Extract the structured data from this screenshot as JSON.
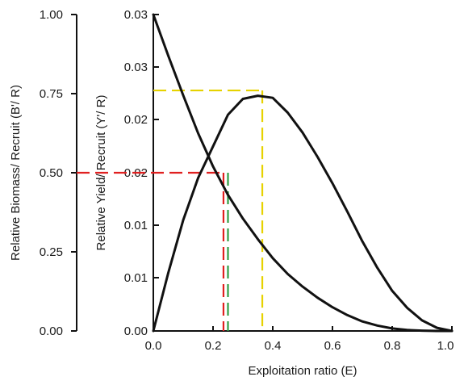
{
  "chart_data": {
    "type": "line",
    "xlabel": "Exploitation ratio (E)",
    "ylabel_left": "Relative Biomass/ Recruit (B'/ R)",
    "ylabel_right": "Relative Yield/ Recruit (Y'/ R)",
    "x_range": [
      0,
      1
    ],
    "x_ticks": [
      "0.0",
      "0.2",
      "0.4",
      "0.6",
      "0.8",
      "1.0"
    ],
    "left_axis": {
      "range": [
        0,
        1
      ],
      "ticks": [
        "0.00",
        "0.25",
        "0.50",
        "0.75",
        "1.00"
      ],
      "highlight_tick": "0.50",
      "highlight_color": "#e02020"
    },
    "right_axis": {
      "range": [
        0,
        0.03
      ],
      "ticks": [
        "0.00",
        "0.01",
        "0.02",
        "0.03"
      ]
    },
    "series": [
      {
        "axis": "left",
        "color": "#111111",
        "x": [
          0.0,
          0.05,
          0.1,
          0.15,
          0.2,
          0.25,
          0.3,
          0.35,
          0.4,
          0.45,
          0.5,
          0.55,
          0.6,
          0.65,
          0.7,
          0.75,
          0.8,
          0.85,
          0.9,
          0.95,
          1.0
        ],
        "y": [
          1.0,
          0.87,
          0.745,
          0.625,
          0.52,
          0.43,
          0.355,
          0.29,
          0.23,
          0.18,
          0.14,
          0.105,
          0.075,
          0.05,
          0.03,
          0.017,
          0.008,
          0.003,
          0.001,
          0.0,
          0.0
        ]
      },
      {
        "axis": "right",
        "color": "#111111",
        "x": [
          0.0,
          0.05,
          0.1,
          0.15,
          0.2,
          0.25,
          0.3,
          0.35,
          0.4,
          0.45,
          0.5,
          0.55,
          0.6,
          0.65,
          0.7,
          0.75,
          0.8,
          0.85,
          0.9,
          0.95,
          1.0
        ],
        "y": [
          0.0,
          0.0055,
          0.0105,
          0.0145,
          0.0175,
          0.0205,
          0.022,
          0.0223,
          0.0221,
          0.0207,
          0.0188,
          0.0165,
          0.014,
          0.0113,
          0.0085,
          0.006,
          0.0038,
          0.0022,
          0.001,
          0.0003,
          0.0
        ]
      }
    ],
    "reference_lines": [
      {
        "color": "#e02020",
        "x": 0.235,
        "y_left": 0.5
      },
      {
        "color": "#2f9e44",
        "x": 0.25,
        "y_left": 0.5
      },
      {
        "color": "#e6d200",
        "x": 0.365,
        "y_right": 0.0228
      }
    ],
    "grid": false,
    "legend": "none"
  }
}
